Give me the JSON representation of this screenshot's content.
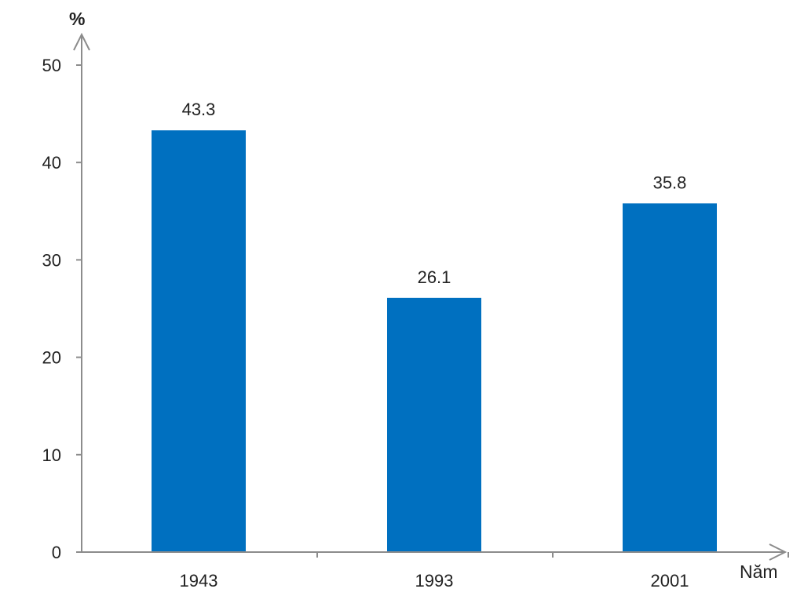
{
  "chart_data": {
    "type": "bar",
    "categories": [
      "1943",
      "1993",
      "2001"
    ],
    "values": [
      43.3,
      26.1,
      35.8
    ],
    "data_labels": [
      "43.3",
      "26.1",
      "35.8"
    ],
    "ylabel": "%",
    "xlabel": "Năm",
    "ylim": [
      0,
      50
    ],
    "yticks": [
      0,
      10,
      20,
      30,
      40,
      50
    ],
    "ytick_labels": [
      "0",
      "10",
      "20",
      "30",
      "40",
      "50"
    ],
    "grid": false,
    "legend": "none",
    "bar_color": "#0070C0",
    "axis_color": "#8c8c8c"
  }
}
